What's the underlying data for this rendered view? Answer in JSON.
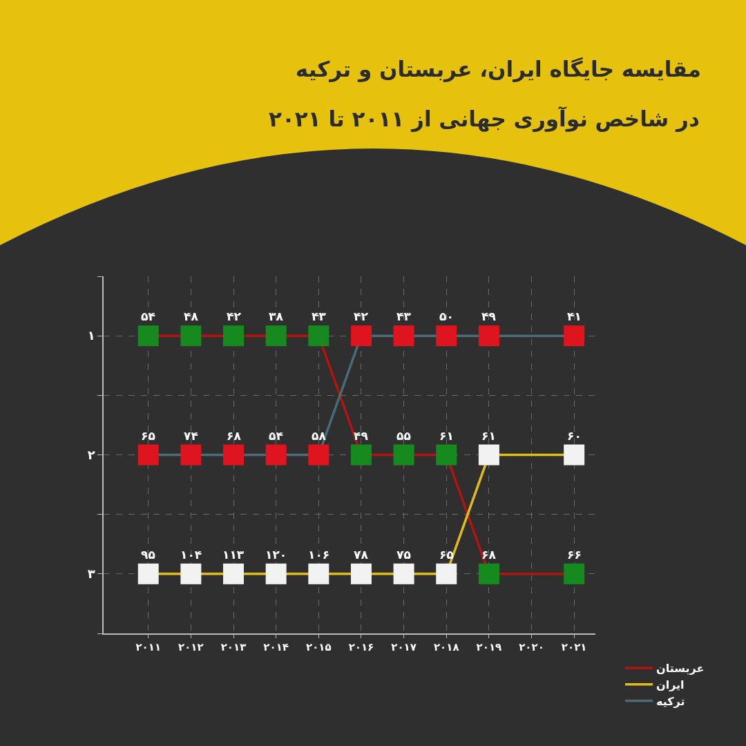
{
  "chart_data": {
    "type": "line",
    "title": "مقایسه جایگاه ایران، عربستان و ترکیه",
    "subtitle": "در شاخص نوآوری جهانی از ۲۰۱۱ تا ۲۰۲۱",
    "categories": [
      "۲۰۱۱",
      "۲۰۱۲",
      "۲۰۱۳",
      "۲۰۱۴",
      "۲۰۱۵",
      "۲۰۱۶",
      "۲۰۱۷",
      "۲۰۱۸",
      "۲۰۱۹",
      "۲۰۲۰",
      "۲۰۲۱"
    ],
    "series": [
      {
        "name": "عربستان",
        "color": "#b3140f",
        "colors": [
          "#168a1e",
          "#168a1e",
          "#168a1e",
          "#168a1e",
          "#168a1e",
          "#168a1e",
          "#168a1e",
          "#168a1e",
          "#168a1e",
          "#168a1e",
          "#168a1e"
        ],
        "values": [
          1,
          1,
          1,
          1,
          1,
          2,
          2,
          2,
          3,
          null,
          3
        ]
      },
      {
        "name": "ایران",
        "color": "#e3bc17",
        "colors": [
          "#f2f2f2",
          "#f2f2f2",
          "#f2f2f2",
          "#f2f2f2",
          "#f2f2f2",
          "#f2f2f2",
          "#f2f2f2",
          "#f2f2f2",
          "#f2f2f2",
          "#f2f2f2",
          "#f2f2f2"
        ],
        "values": [
          3,
          3,
          3,
          3,
          3,
          3,
          3,
          3,
          2,
          null,
          2
        ]
      },
      {
        "name": "ترکیه",
        "color": "#4b6b77",
        "colors": [
          "#e0141e",
          "#e0141e",
          "#e0141e",
          "#e0141e",
          "#e0141e",
          "#e0141e",
          "#e0141e",
          "#e0141e",
          "#e0141e",
          "#e0141e",
          "#e0141e"
        ],
        "values": [
          2,
          2,
          2,
          2,
          2,
          1,
          1,
          1,
          1,
          null,
          1
        ]
      }
    ],
    "annotations": [
      {
        "text": "۵۴",
        "x": "۲۰۱۱",
        "y": 1
      },
      {
        "text": "۴۸",
        "x": "۲۰۱۲",
        "y": 1
      },
      {
        "text": "۴۲",
        "x": "۲۰۱۳",
        "y": 1
      },
      {
        "text": "۳۸",
        "x": "۲۰۱۴",
        "y": 1
      },
      {
        "text": "۴۳",
        "x": "۲۰۱۵",
        "y": 1
      },
      {
        "text": "۴۹",
        "x": "۲۰۱۶",
        "y": 2
      },
      {
        "text": "۵۵",
        "x": "۲۰۱۷",
        "y": 2
      },
      {
        "text": "۶۱",
        "x": "۲۰۱۸",
        "y": 2
      },
      {
        "text": "۶۸",
        "x": "۲۰۱۹",
        "y": 3
      },
      {
        "text": "۶۶",
        "x": "۲۰۲۱",
        "y": 3
      },
      {
        "text": "۹۵",
        "x": "۲۰۱۱",
        "y": 3
      },
      {
        "text": "۱۰۴",
        "x": "۲۰۱۲",
        "y": 3
      },
      {
        "text": "۱۱۳",
        "x": "۲۰۱۳",
        "y": 3
      },
      {
        "text": "۱۲۰",
        "x": "۲۰۱۴",
        "y": 3
      },
      {
        "text": "۱۰۶",
        "x": "۲۰۱۵",
        "y": 3
      },
      {
        "text": "۷۸",
        "x": "۲۰۱۶",
        "y": 3
      },
      {
        "text": "۷۵",
        "x": "۲۰۱۷",
        "y": 3
      },
      {
        "text": "۶۵",
        "x": "۲۰۱۸",
        "y": 3
      },
      {
        "text": "۶۱",
        "x": "۲۰۱۹",
        "y": 2
      },
      {
        "text": "۶۰",
        "x": "۲۰۲۱",
        "y": 2
      },
      {
        "text": "۶۵",
        "x": "۲۰۱۱",
        "y": 2
      },
      {
        "text": "۷۴",
        "x": "۲۰۱۲",
        "y": 2
      },
      {
        "text": "۶۸",
        "x": "۲۰۱۳",
        "y": 2
      },
      {
        "text": "۵۴",
        "x": "۲۰۱۴",
        "y": 2
      },
      {
        "text": "۵۸",
        "x": "۲۰۱۵",
        "y": 2
      },
      {
        "text": "۴۲",
        "x": "۲۰۱۶",
        "y": 1
      },
      {
        "text": "۴۳",
        "x": "۲۰۱۷",
        "y": 1
      },
      {
        "text": "۵۰",
        "x": "۲۰۱۸",
        "y": 1
      },
      {
        "text": "۴۹",
        "x": "۲۰۱۹",
        "y": 1
      },
      {
        "text": "۴۱",
        "x": "۲۰۲۱",
        "y": 1
      }
    ],
    "ylim": [
      3.5,
      0.5
    ],
    "yticks": [
      {
        "value": 0.5,
        "label": null
      },
      {
        "value": 1,
        "label": "۱"
      },
      {
        "value": 1.5,
        "label": null
      },
      {
        "value": 2,
        "label": "۲"
      },
      {
        "value": 2.5,
        "label": null
      },
      {
        "value": 3,
        "label": "۳"
      },
      {
        "value": 3.5,
        "label": null
      }
    ],
    "grid": true,
    "legend": "bottom right",
    "marker": "square",
    "line_style": "solid"
  }
}
